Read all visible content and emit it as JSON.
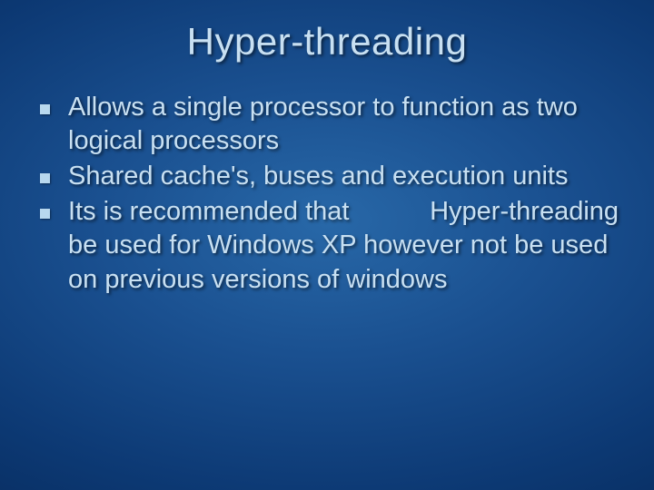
{
  "slide": {
    "title": "Hyper-threading",
    "bullets": [
      {
        "text": "Allows a single processor to function as two logical processors"
      },
      {
        "text": "Shared cache's, buses and execution units"
      },
      {
        "text": "Its is recommended that           Hyper-threading be used for Windows XP however not be used on previous versions of windows"
      }
    ],
    "style": {
      "background_gradient_center": "#2868a8",
      "background_gradient_edge": "#021d45",
      "title_color": "#c8e0f2",
      "title_fontsize": 42,
      "body_color": "#c8e0f2",
      "body_fontsize": 29,
      "bullet_marker_color": "#b8d8ee",
      "bullet_marker_size": 11,
      "font_family": "Verdana",
      "text_shadow": "2px 2px 3px rgba(0,0,0,0.55)"
    }
  }
}
